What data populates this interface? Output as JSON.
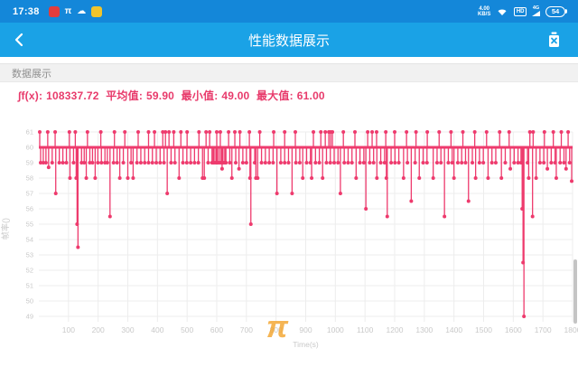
{
  "colors": {
    "status_bar_blue": "#1487d9",
    "header_blue": "#1aa2e6",
    "series_pink": "#ee3a6d",
    "stats_pink": "#e83a6b",
    "watermark_orange": "#f3a32a",
    "grid_gray": "#ededed",
    "tick_gray": "#c9c9c9"
  },
  "status_bar": {
    "time": "17:38",
    "left_icons": [
      {
        "name": "red-app-icon",
        "glyph": "",
        "bg": "#e23c3c"
      },
      {
        "name": "pi-tool-icon",
        "glyph": "π",
        "bg": "transparent"
      },
      {
        "name": "cloud-icon",
        "glyph": "☁",
        "bg": "transparent"
      },
      {
        "name": "yellow-app-icon",
        "glyph": "",
        "bg": "#f0c42c"
      }
    ],
    "net_speed_value": "4.00",
    "net_speed_unit": "KB/S",
    "hd_label": "HD",
    "net_type": "4G",
    "battery_level": "54"
  },
  "header": {
    "title": "性能数据展示"
  },
  "section": {
    "label": "数据展示"
  },
  "stats": {
    "integral_label": "∫f(x):",
    "integral_value": "108337.72",
    "avg_label": "平均值:",
    "avg_value": "59.90",
    "min_label": "最小值:",
    "min_value": "49.00",
    "max_label": "最大值:",
    "max_value": "61.00"
  },
  "chart_data": {
    "type": "line",
    "title": "",
    "xlabel": "Time(s)",
    "ylabel": "帧率()",
    "xlim": [
      0,
      1800
    ],
    "ylim": [
      49,
      61
    ],
    "x_ticks": [
      100,
      200,
      300,
      400,
      500,
      600,
      700,
      800,
      900,
      1000,
      1100,
      1200,
      1300,
      1400,
      1500,
      1600,
      1700,
      1800
    ],
    "y_ticks": [
      49,
      50,
      51,
      52,
      53,
      54,
      55,
      56,
      57,
      58,
      59,
      60,
      61
    ],
    "grid": true,
    "legend": "none",
    "baseline_value": 60,
    "max_value": 61,
    "min_value": 49,
    "mean_value": 59.9,
    "integral_value": 108337.72,
    "watermark": "π",
    "dips": [
      [
        6,
        59
      ],
      [
        15,
        59
      ],
      [
        24,
        59
      ],
      [
        33,
        58.7
      ],
      [
        45,
        59
      ],
      [
        57,
        57
      ],
      [
        69,
        59
      ],
      [
        81,
        59
      ],
      [
        93,
        59
      ],
      [
        105,
        58
      ],
      [
        117,
        59
      ],
      [
        126,
        58
      ],
      [
        129,
        55
      ],
      [
        132,
        53.5
      ],
      [
        144,
        59
      ],
      [
        153,
        59
      ],
      [
        160,
        58
      ],
      [
        172,
        59
      ],
      [
        181,
        59
      ],
      [
        190,
        58
      ],
      [
        199,
        59
      ],
      [
        211,
        59
      ],
      [
        223,
        59
      ],
      [
        231,
        59
      ],
      [
        240,
        55.5
      ],
      [
        252,
        59
      ],
      [
        264,
        59
      ],
      [
        273,
        58
      ],
      [
        285,
        59
      ],
      [
        300,
        58
      ],
      [
        311,
        59
      ],
      [
        318,
        58
      ],
      [
        331,
        59
      ],
      [
        344,
        59
      ],
      [
        357,
        59
      ],
      [
        370,
        59
      ],
      [
        383,
        59
      ],
      [
        396,
        59
      ],
      [
        409,
        59
      ],
      [
        422,
        59
      ],
      [
        433,
        57
      ],
      [
        446,
        59
      ],
      [
        459,
        59
      ],
      [
        473,
        58
      ],
      [
        486,
        59
      ],
      [
        499,
        59
      ],
      [
        512,
        59
      ],
      [
        525,
        59
      ],
      [
        538,
        59
      ],
      [
        552,
        58
      ],
      [
        558,
        58
      ],
      [
        571,
        59
      ],
      [
        584,
        59
      ],
      [
        588,
        59
      ],
      [
        591,
        59
      ],
      [
        597,
        59
      ],
      [
        600,
        59
      ],
      [
        603,
        59
      ],
      [
        609,
        59
      ],
      [
        615,
        59
      ],
      [
        618,
        58.6
      ],
      [
        621,
        59
      ],
      [
        627,
        59
      ],
      [
        631,
        59
      ],
      [
        644,
        59
      ],
      [
        651,
        58
      ],
      [
        664,
        59
      ],
      [
        675,
        58.6
      ],
      [
        688,
        59
      ],
      [
        700,
        59
      ],
      [
        712,
        58
      ],
      [
        715,
        55
      ],
      [
        728,
        59
      ],
      [
        732,
        58
      ],
      [
        738,
        58
      ],
      [
        751,
        59
      ],
      [
        764,
        59
      ],
      [
        777,
        59
      ],
      [
        790,
        59
      ],
      [
        803,
        57
      ],
      [
        816,
        59
      ],
      [
        829,
        59
      ],
      [
        842,
        59
      ],
      [
        854,
        57
      ],
      [
        867,
        59
      ],
      [
        880,
        59
      ],
      [
        890,
        58
      ],
      [
        903,
        59
      ],
      [
        916,
        59
      ],
      [
        920,
        58
      ],
      [
        933,
        59
      ],
      [
        946,
        59
      ],
      [
        957,
        58
      ],
      [
        970,
        59
      ],
      [
        983,
        59
      ],
      [
        996,
        59
      ],
      [
        1009,
        59
      ],
      [
        1017,
        57
      ],
      [
        1030,
        59
      ],
      [
        1043,
        59
      ],
      [
        1056,
        59
      ],
      [
        1070,
        58
      ],
      [
        1083,
        59
      ],
      [
        1096,
        59
      ],
      [
        1103,
        56
      ],
      [
        1116,
        59
      ],
      [
        1129,
        59
      ],
      [
        1140,
        58
      ],
      [
        1153,
        59
      ],
      [
        1166,
        59
      ],
      [
        1172,
        58
      ],
      [
        1175,
        55.5
      ],
      [
        1188,
        59
      ],
      [
        1201,
        59
      ],
      [
        1214,
        59
      ],
      [
        1230,
        58
      ],
      [
        1243,
        59
      ],
      [
        1256,
        56.5
      ],
      [
        1269,
        59
      ],
      [
        1283,
        58
      ],
      [
        1296,
        59
      ],
      [
        1309,
        59
      ],
      [
        1330,
        58
      ],
      [
        1343,
        59
      ],
      [
        1356,
        59
      ],
      [
        1368,
        55.5
      ],
      [
        1381,
        59
      ],
      [
        1394,
        59
      ],
      [
        1400,
        58
      ],
      [
        1413,
        59
      ],
      [
        1426,
        59
      ],
      [
        1439,
        59
      ],
      [
        1449,
        56.5
      ],
      [
        1462,
        59
      ],
      [
        1473,
        58
      ],
      [
        1486,
        59
      ],
      [
        1499,
        59
      ],
      [
        1515,
        58
      ],
      [
        1528,
        59
      ],
      [
        1541,
        59
      ],
      [
        1560,
        58
      ],
      [
        1573,
        59
      ],
      [
        1590,
        58.6
      ],
      [
        1603,
        59
      ],
      [
        1616,
        59
      ],
      [
        1626,
        59
      ],
      [
        1630,
        56
      ],
      [
        1633,
        52.5
      ],
      [
        1636,
        49
      ],
      [
        1648,
        59
      ],
      [
        1652,
        58
      ],
      [
        1665,
        55.5
      ],
      [
        1677,
        58
      ],
      [
        1690,
        59
      ],
      [
        1703,
        59
      ],
      [
        1715,
        58.6
      ],
      [
        1728,
        59
      ],
      [
        1741,
        59
      ],
      [
        1745,
        58
      ],
      [
        1758,
        59
      ],
      [
        1771,
        59
      ],
      [
        1778,
        58.6
      ],
      [
        1790,
        59
      ],
      [
        1797,
        57.8
      ]
    ],
    "spikes_to_max": [
      3,
      30,
      55,
      103,
      123,
      164,
      209,
      255,
      290,
      335,
      370,
      390,
      418,
      427,
      439,
      455,
      479,
      500,
      540,
      564,
      576,
      600,
      612,
      640,
      661,
      678,
      710,
      745,
      792,
      829,
      865,
      926,
      951,
      966,
      978,
      984,
      990,
      1027,
      1066,
      1109,
      1124,
      1139,
      1170,
      1200,
      1240,
      1272,
      1310,
      1350,
      1390,
      1430,
      1470,
      1510,
      1554,
      1586,
      1656,
      1667,
      1705,
      1735,
      1762,
      1785
    ]
  }
}
